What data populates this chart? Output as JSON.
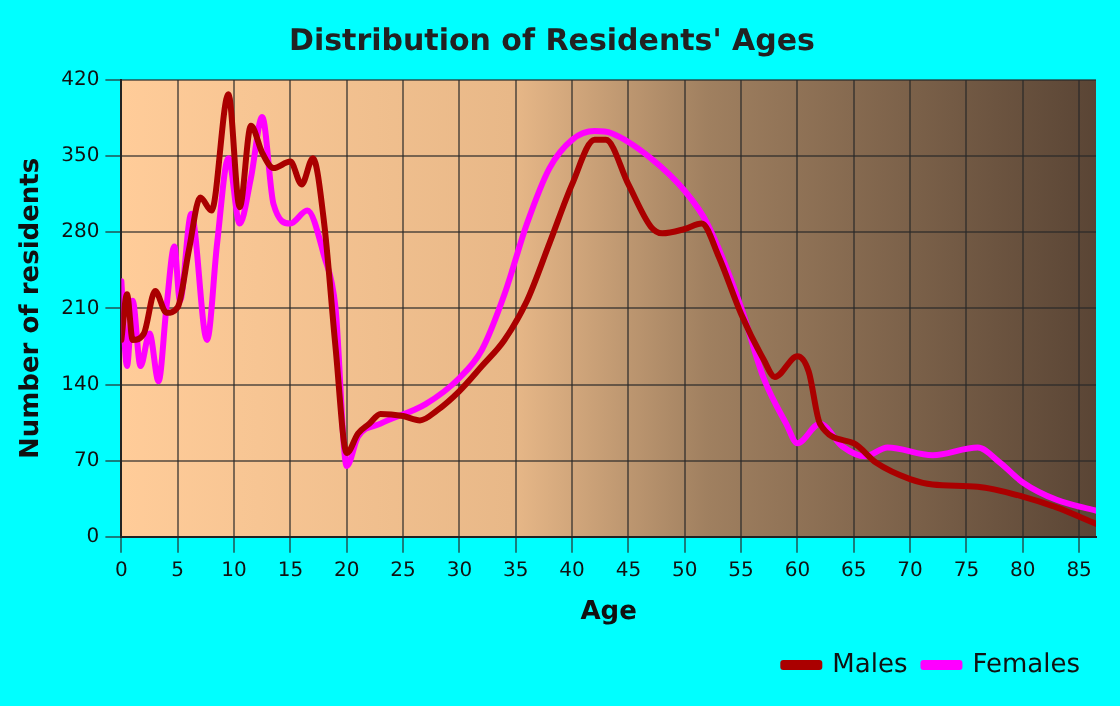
{
  "chart_data": {
    "type": "line",
    "title": "Distribution of Residents' Ages",
    "xlabel": "Age",
    "ylabel": "Number of residents",
    "xlim": [
      0,
      86.5
    ],
    "xticks": [
      0,
      5,
      10,
      15,
      20,
      25,
      30,
      35,
      40,
      45,
      50,
      55,
      60,
      65,
      70,
      75,
      80,
      85
    ],
    "ylim": [
      0,
      420
    ],
    "yticks": [
      0,
      70,
      140,
      210,
      280,
      350,
      420
    ],
    "grid": true,
    "legend": "bottom right",
    "marker": "none",
    "line_style": "solid",
    "series": [
      {
        "name": "Males",
        "color": "#aa0000",
        "x": [
          0,
          0.5,
          1,
          2,
          3,
          4,
          5,
          6,
          7,
          8,
          9.5,
          10.5,
          11.5,
          12.5,
          13.5,
          15,
          16,
          17,
          18,
          19,
          20,
          21,
          22,
          23,
          25,
          26.5,
          28,
          30,
          32,
          34,
          36,
          38,
          40,
          42,
          43,
          45,
          47,
          48,
          50,
          51.5,
          53,
          55,
          57,
          58,
          60,
          61,
          62,
          65,
          67,
          70,
          72,
          76,
          80,
          83,
          86.5
        ],
        "values": [
          181,
          223,
          181,
          187,
          226,
          206,
          211,
          264,
          312,
          300,
          407,
          303,
          378,
          353,
          339,
          345,
          324,
          348,
          288,
          175,
          77,
          95,
          104,
          113,
          111,
          107,
          116,
          134,
          157,
          181,
          217,
          270,
          324,
          365,
          365,
          324,
          285,
          279,
          283,
          288,
          258,
          205,
          163,
          147,
          166,
          152,
          104,
          86,
          68,
          53,
          48,
          46,
          37,
          27,
          12
        ]
      },
      {
        "name": "Females",
        "color": "#ff00ff",
        "x": [
          0,
          0.5,
          1,
          1.7,
          2.5,
          3.3,
          4,
          4.7,
          5.2,
          6.2,
          7.6,
          8.5,
          9.5,
          10.5,
          11.5,
          12.5,
          13.5,
          15,
          16.5,
          18,
          19,
          20,
          21,
          23,
          27,
          30,
          32,
          34,
          36,
          38,
          40,
          42,
          43.5,
          47,
          50,
          52,
          55,
          57,
          59,
          60,
          62,
          64,
          66,
          68,
          72,
          76,
          78,
          80,
          83,
          86.5
        ],
        "values": [
          235,
          157,
          217,
          157,
          187,
          143,
          211,
          267,
          217,
          297,
          181,
          270,
          348,
          288,
          330,
          386,
          306,
          288,
          300,
          258,
          211,
          65,
          92,
          104,
          122,
          146,
          172,
          223,
          288,
          339,
          365,
          373,
          371,
          348,
          318,
          288,
          211,
          146,
          104,
          86,
          104,
          83,
          74,
          82,
          75,
          82,
          68,
          50,
          34,
          24
        ]
      }
    ]
  }
}
